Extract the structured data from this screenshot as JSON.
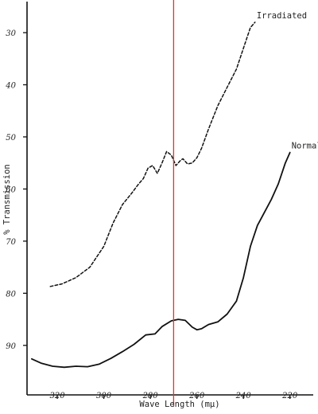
{
  "chart_data": {
    "type": "line",
    "title": "",
    "xlabel": "Wave Length (mμ)",
    "ylabel": "% Transmission",
    "x_tick_labels": [
      "320",
      "300",
      "280",
      "260",
      "240",
      "220"
    ],
    "x_ticks": [
      320,
      300,
      280,
      260,
      240,
      220
    ],
    "y_tick_labels": [
      "30",
      "40",
      "50",
      "60",
      "70",
      "80",
      "90"
    ],
    "y_ticks": [
      30,
      40,
      50,
      60,
      70,
      80,
      90
    ],
    "xlim": [
      333,
      210
    ],
    "ylim": [
      24.5,
      99.5
    ],
    "y_inverted": true,
    "grid": false,
    "series": [
      {
        "name": "Irradiated",
        "style": "dashed",
        "color": "#111111",
        "x": [
          323,
          318,
          312,
          306,
          300,
          296,
          292,
          288,
          285,
          283,
          281,
          279,
          277,
          275,
          273,
          271,
          269,
          267,
          266,
          264,
          262,
          260,
          258,
          255,
          251,
          247,
          243,
          240,
          237,
          235
        ],
        "y": [
          78.7,
          78.2,
          77.0,
          75.0,
          71.0,
          66.5,
          63.0,
          60.8,
          59.0,
          58.0,
          56.0,
          55.5,
          57.0,
          55.0,
          52.8,
          53.5,
          55.5,
          54.5,
          54.2,
          55.2,
          55.0,
          54.0,
          52.2,
          48.5,
          44.0,
          40.5,
          37.0,
          33.0,
          29.0,
          28.0
        ]
      },
      {
        "name": "Normal",
        "style": "solid",
        "color": "#111111",
        "x": [
          331,
          327,
          322,
          317,
          312,
          307,
          302,
          297,
          292,
          287,
          282,
          278,
          275,
          271,
          268,
          265,
          262,
          260,
          258,
          255,
          251,
          247,
          243,
          240,
          237,
          234,
          231,
          228,
          225,
          222,
          220
        ],
        "y": [
          92.6,
          93.4,
          94.0,
          94.2,
          94.0,
          94.1,
          93.6,
          92.5,
          91.2,
          89.8,
          88.0,
          87.8,
          86.4,
          85.3,
          85.0,
          85.2,
          86.5,
          87.0,
          86.8,
          86.0,
          85.5,
          84.0,
          81.5,
          77.0,
          71.0,
          67.0,
          64.5,
          62.0,
          59.0,
          55.0,
          53.0
        ]
      }
    ],
    "annotations": [
      {
        "text": "Irradiated",
        "series": 0
      },
      {
        "text": "Normal",
        "series": 1
      }
    ],
    "reference_line": {
      "x": 270,
      "color": "#e8302c"
    }
  }
}
